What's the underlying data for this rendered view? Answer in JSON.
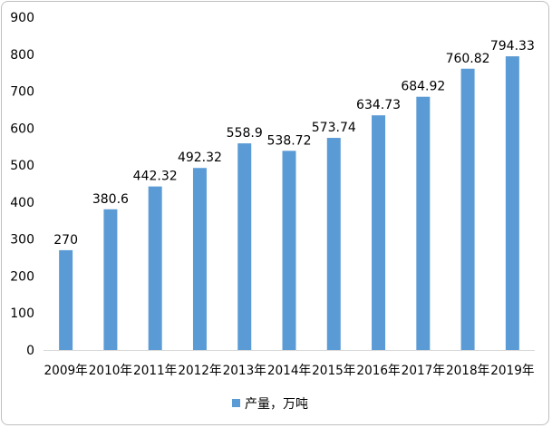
{
  "chart_data": {
    "type": "bar",
    "title": "",
    "xlabel": "",
    "ylabel": "",
    "categories": [
      "2009年",
      "2010年",
      "2011年",
      "2012年",
      "2013年",
      "2014年",
      "2015年",
      "2016年",
      "2017年",
      "2018年",
      "2019年"
    ],
    "series": [
      {
        "name": "产量，万吨",
        "values": [
          270,
          380.6,
          442.32,
          492.32,
          558.9,
          538.72,
          573.74,
          634.73,
          684.92,
          760.82,
          794.33
        ],
        "value_labels": [
          "270",
          "380.6",
          "442.32",
          "492.32",
          "558.9",
          "538.72",
          "573.74",
          "634.73",
          "684.92",
          "760.82",
          "794.33"
        ],
        "color": "#5b9bd5"
      }
    ],
    "ylim": [
      0,
      900
    ],
    "yticks": [
      0,
      100,
      200,
      300,
      400,
      500,
      600,
      700,
      800,
      900
    ],
    "grid": false,
    "legend": "bottom-center",
    "axis_color": "#d9d9d9"
  }
}
